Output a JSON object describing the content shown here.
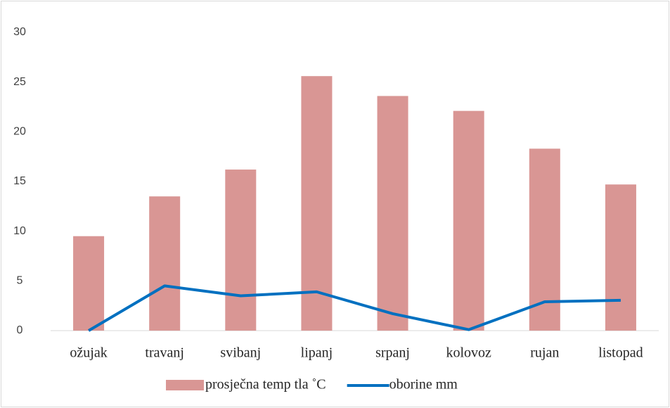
{
  "chart_data": {
    "type": "bar",
    "categories": [
      "ožujak",
      "travanj",
      "svibanj",
      "lipanj",
      "srpanj",
      "kolovoz",
      "rujan",
      "listopad"
    ],
    "series": [
      {
        "name": "prosječna temp tla ˚C",
        "type": "bar",
        "color": "#d99694",
        "values": [
          9.5,
          13.5,
          16.2,
          25.6,
          23.6,
          22.1,
          18.3,
          14.7
        ]
      },
      {
        "name": "oborine mm",
        "type": "line",
        "color": "#0070c0",
        "values": [
          0,
          4.5,
          3.5,
          3.9,
          1.7,
          0.1,
          2.9,
          3.05
        ]
      }
    ],
    "ylim": [
      0,
      30
    ],
    "yticks": [
      0,
      5,
      10,
      15,
      20,
      25,
      30
    ],
    "grid": false,
    "legend": "bottom"
  }
}
